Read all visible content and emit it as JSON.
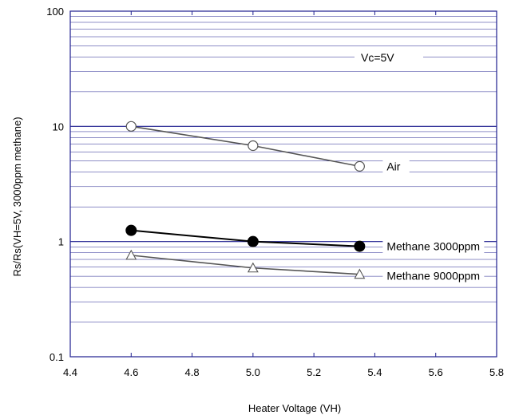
{
  "chart_data": {
    "type": "line",
    "xlabel": "Heater Voltage (VH)",
    "ylabel": "Rs/Rs(VH=5V, 3000ppm methane)",
    "xlim": [
      4.4,
      5.8
    ],
    "ylim": [
      0.1,
      100
    ],
    "yscale": "log",
    "x_ticks": [
      4.4,
      4.6,
      4.8,
      5.0,
      5.2,
      5.4,
      5.6,
      5.8
    ],
    "x_tick_labels": [
      "4.4",
      "4.6",
      "4.8",
      "5.0",
      "5.2",
      "5.4",
      "5.6",
      "5.8"
    ],
    "y_ticks": [
      0.1,
      1,
      10,
      100
    ],
    "y_tick_labels": [
      "0.1",
      "1",
      "10",
      "100"
    ],
    "grid": true,
    "annotation": "Vc=5V",
    "series": [
      {
        "name": "Air",
        "marker": "open-circle",
        "x": [
          4.6,
          5.0,
          5.35
        ],
        "y": [
          10.0,
          6.8,
          4.5
        ]
      },
      {
        "name": "Methane 3000ppm",
        "marker": "filled-circle",
        "x": [
          4.6,
          5.0,
          5.35
        ],
        "y": [
          1.25,
          1.0,
          0.91
        ]
      },
      {
        "name": "Methane 9000ppm",
        "marker": "open-triangle",
        "x": [
          4.6,
          5.0,
          5.35
        ],
        "y": [
          0.76,
          0.59,
          0.52
        ]
      }
    ],
    "colors": {
      "grid": "#1f1f8f",
      "line": "#555555",
      "marker": "#000000"
    }
  }
}
